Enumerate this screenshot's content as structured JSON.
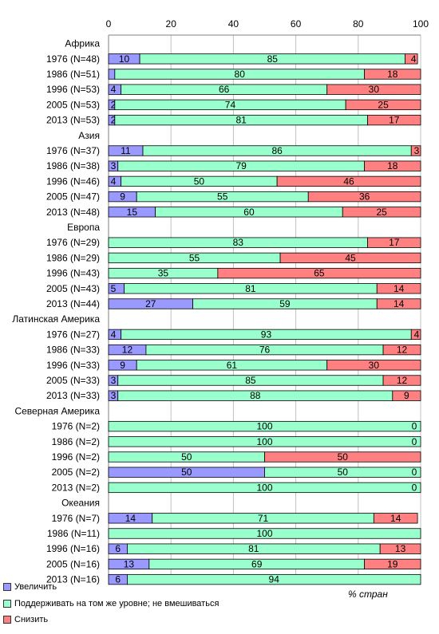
{
  "chart_data": {
    "type": "bar",
    "stacked": true,
    "orientation": "horizontal",
    "title": "",
    "xlabel": "% стран",
    "xlim": [
      0,
      100
    ],
    "xticks": [
      "0",
      "20",
      "40",
      "60",
      "80",
      "100"
    ],
    "grid": true,
    "legend_position": "bottom-left",
    "series": [
      {
        "name": "Увеличить",
        "color": "#9999ff"
      },
      {
        "name": "Поддерживать на том же уровне; не вмешиваться",
        "color": "#99ffcc"
      },
      {
        "name": "Снизить",
        "color": "#ff8080"
      }
    ],
    "groups": [
      {
        "name": "Африка",
        "rows": [
          {
            "label": "1976 (N=48)",
            "values": [
              10,
              85,
              4
            ],
            "labels": [
              "10",
              "85",
              "4"
            ]
          },
          {
            "label": "1986 (N=51)",
            "values": [
              2,
              80,
              18
            ],
            "labels": [
              "",
              "80",
              "18"
            ]
          },
          {
            "label": "1996 (N=53)",
            "values": [
              4,
              66,
              30
            ],
            "labels": [
              "4",
              "66",
              "30"
            ]
          },
          {
            "label": "2005 (N=53)",
            "values": [
              2,
              74,
              25
            ],
            "labels": [
              "2",
              "74",
              "25"
            ]
          },
          {
            "label": "2013 (N=53)",
            "values": [
              2,
              81,
              17
            ],
            "labels": [
              "2",
              "81",
              "17"
            ]
          }
        ]
      },
      {
        "name": "Азия",
        "rows": [
          {
            "label": "1976 (N=37)",
            "values": [
              11,
              86,
              3
            ],
            "labels": [
              "11",
              "86",
              "3"
            ]
          },
          {
            "label": "1986 (N=38)",
            "values": [
              3,
              79,
              18
            ],
            "labels": [
              "3",
              "79",
              "18"
            ]
          },
          {
            "label": "1996 (N=46)",
            "values": [
              4,
              50,
              46
            ],
            "labels": [
              "4",
              "50",
              "46"
            ]
          },
          {
            "label": "2005 (N=47)",
            "values": [
              9,
              55,
              36
            ],
            "labels": [
              "9",
              "55",
              "36"
            ]
          },
          {
            "label": "2013 (N=48)",
            "values": [
              15,
              60,
              25
            ],
            "labels": [
              "15",
              "60",
              "25"
            ]
          }
        ]
      },
      {
        "name": "Европа",
        "rows": [
          {
            "label": "1976 (N=29)",
            "values": [
              0,
              83,
              17
            ],
            "labels": [
              "",
              "83",
              "17"
            ]
          },
          {
            "label": "1986 (N=29)",
            "values": [
              0,
              55,
              45
            ],
            "labels": [
              "",
              "55",
              "45"
            ]
          },
          {
            "label": "1996 (N=43)",
            "values": [
              0,
              35,
              65
            ],
            "labels": [
              "",
              "35",
              "65"
            ]
          },
          {
            "label": "2005 (N=43)",
            "values": [
              5,
              81,
              14
            ],
            "labels": [
              "5",
              "81",
              "14"
            ]
          },
          {
            "label": "2013 (N=44)",
            "values": [
              27,
              59,
              14
            ],
            "labels": [
              "27",
              "59",
              "14"
            ]
          }
        ]
      },
      {
        "name": "Латинская Америка",
        "rows": [
          {
            "label": "1976 (N=27)",
            "values": [
              4,
              93,
              4
            ],
            "labels": [
              "4",
              "93",
              "4"
            ]
          },
          {
            "label": "1986 (N=33)",
            "values": [
              12,
              76,
              12
            ],
            "labels": [
              "12",
              "76",
              "12"
            ]
          },
          {
            "label": "1996 (N=33)",
            "values": [
              9,
              61,
              30
            ],
            "labels": [
              "9",
              "61",
              "30"
            ]
          },
          {
            "label": "2005 (N=33)",
            "values": [
              3,
              85,
              12
            ],
            "labels": [
              "3",
              "85",
              "12"
            ]
          },
          {
            "label": "2013 (N=33)",
            "values": [
              3,
              88,
              9
            ],
            "labels": [
              "3",
              "88",
              "9"
            ]
          }
        ]
      },
      {
        "name": "Северная Америка",
        "rows": [
          {
            "label": "1976 (N=2)",
            "values": [
              0,
              100,
              0
            ],
            "labels": [
              "",
              "100",
              "0"
            ]
          },
          {
            "label": "1986 (N=2)",
            "values": [
              0,
              100,
              0
            ],
            "labels": [
              "",
              "100",
              "0"
            ]
          },
          {
            "label": "1996 (N=2)",
            "values": [
              0,
              50,
              50
            ],
            "labels": [
              "",
              "50",
              "50"
            ]
          },
          {
            "label": "2005 (N=2)",
            "values": [
              50,
              50,
              0
            ],
            "labels": [
              "50",
              "50",
              "0"
            ]
          },
          {
            "label": "2013 (N=2)",
            "values": [
              0,
              100,
              0
            ],
            "labels": [
              "",
              "100",
              "0"
            ]
          }
        ]
      },
      {
        "name": "Океания",
        "rows": [
          {
            "label": "1976 (N=7)",
            "values": [
              14,
              71,
              14
            ],
            "labels": [
              "14",
              "71",
              "14"
            ]
          },
          {
            "label": "1986 (N=11)",
            "values": [
              0,
              100,
              0
            ],
            "labels": [
              "",
              "100",
              ""
            ]
          },
          {
            "label": "1996 (N=16)",
            "values": [
              6,
              81,
              13
            ],
            "labels": [
              "6",
              "81",
              "13"
            ]
          },
          {
            "label": "2005 (N=16)",
            "values": [
              13,
              69,
              19
            ],
            "labels": [
              "13",
              "69",
              "19"
            ]
          },
          {
            "label": "2013 (N=16)",
            "values": [
              6,
              94,
              0
            ],
            "labels": [
              "6",
              "94",
              ""
            ]
          }
        ]
      }
    ]
  }
}
